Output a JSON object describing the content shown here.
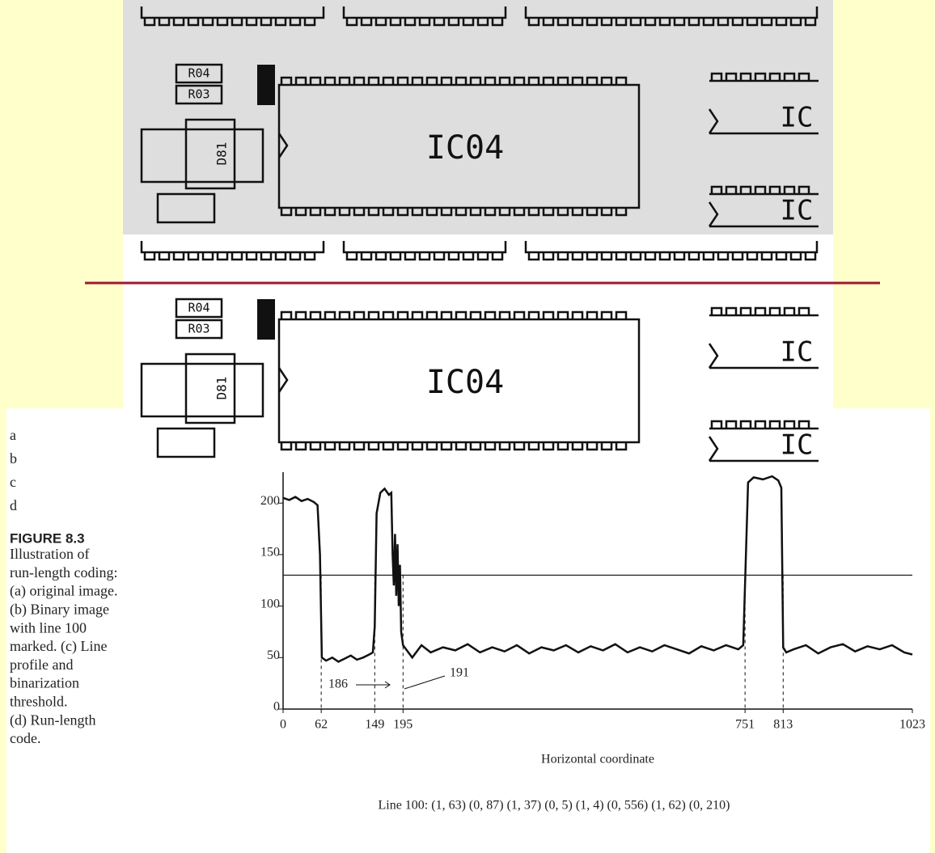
{
  "panels": [
    {
      "ic_label": "IC04",
      "side_labels": [
        "IC",
        "IC"
      ],
      "components": [
        "R04",
        "R03",
        "D81"
      ]
    },
    {
      "ic_label": "IC04",
      "side_labels": [
        "IC",
        "IC"
      ],
      "components": [
        "R04",
        "R03",
        "D81"
      ]
    }
  ],
  "caption": {
    "letters": [
      "a",
      "b",
      "c",
      "d"
    ],
    "figure": "FIGURE 8.3",
    "lines": [
      "Illustration of",
      "run-length coding:",
      "(a) original image.",
      "(b) Binary image",
      "with line 100",
      "marked. (c) Line",
      "profile and",
      "binarization",
      "threshold.",
      "(d) Run-length",
      "code."
    ]
  },
  "chart_data": {
    "type": "line",
    "x_label": "Horizontal coordinate",
    "xlim": [
      0,
      1023
    ],
    "ylim": [
      0,
      230
    ],
    "xticks": [
      0,
      62,
      149,
      195,
      751,
      813,
      1023
    ],
    "yticks": [
      0,
      50,
      100,
      150,
      200
    ],
    "threshold": 130,
    "annotations": [
      "186",
      "191"
    ],
    "x": [
      0,
      10,
      20,
      30,
      40,
      50,
      56,
      60,
      63,
      70,
      80,
      90,
      100,
      110,
      120,
      130,
      140,
      146,
      149,
      152,
      158,
      165,
      172,
      176,
      178,
      180,
      182,
      184,
      186,
      188,
      190,
      192,
      195,
      200,
      210,
      225,
      240,
      260,
      280,
      300,
      320,
      340,
      360,
      380,
      400,
      420,
      440,
      460,
      480,
      500,
      520,
      540,
      560,
      580,
      600,
      620,
      640,
      660,
      680,
      700,
      720,
      740,
      748,
      751,
      756,
      765,
      780,
      795,
      805,
      810,
      813,
      818,
      830,
      850,
      870,
      890,
      910,
      930,
      950,
      970,
      990,
      1010,
      1023
    ],
    "series": [
      {
        "color": "#111111",
        "values": [
          205,
          203,
          206,
          202,
          204,
          201,
          198,
          150,
          50,
          47,
          50,
          46,
          49,
          52,
          48,
          50,
          53,
          55,
          80,
          190,
          210,
          214,
          208,
          210,
          150,
          120,
          170,
          110,
          160,
          100,
          140,
          75,
          62,
          58,
          50,
          62,
          55,
          60,
          57,
          63,
          55,
          60,
          56,
          62,
          54,
          60,
          57,
          62,
          55,
          61,
          57,
          63,
          55,
          60,
          56,
          62,
          58,
          54,
          61,
          57,
          62,
          58,
          62,
          120,
          220,
          225,
          223,
          226,
          222,
          215,
          60,
          55,
          58,
          62,
          54,
          60,
          63,
          56,
          61,
          58,
          62,
          55,
          53
        ]
      }
    ]
  },
  "run_length": "Line 100: (1, 63) (0, 87) (1, 37) (0, 5) (1, 4) (0, 556) (1, 62) (0, 210)"
}
